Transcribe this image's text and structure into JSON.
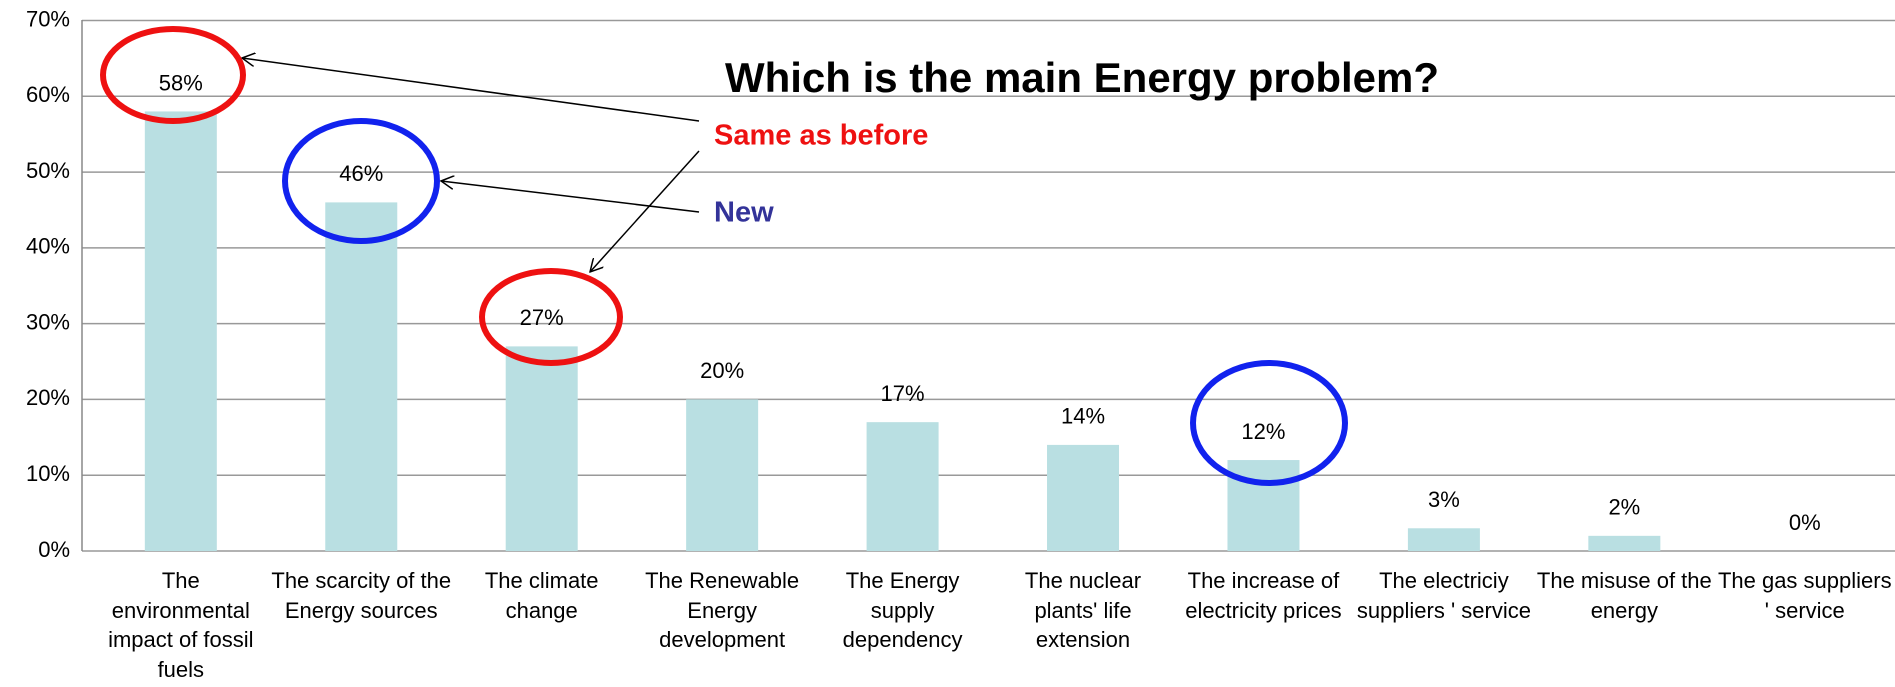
{
  "chart_data": {
    "type": "bar",
    "title": "Which is the main Energy problem?",
    "annotations": [
      "Same as before",
      "New"
    ],
    "categories": [
      "The environmental impact of fossil fuels",
      "The scarcity of the Energy sources",
      "The climate change",
      "The Renewable Energy development",
      "The Energy supply dependency",
      "The nuclear plants' life extension",
      "The increase of electricity prices",
      "The electriciy suppliers ' service",
      "The misuse of the energy",
      "The gas suppliers ' service"
    ],
    "values": [
      58,
      46,
      27,
      20,
      17,
      14,
      12,
      3,
      2,
      0
    ],
    "value_labels": [
      "58%",
      "46%",
      "27%",
      "20%",
      "17%",
      "14%",
      "12%",
      "3%",
      "2%",
      "0%"
    ],
    "color": "#b9dfe2",
    "ylim": [
      0,
      70
    ],
    "yticks": [
      {
        "value": 0,
        "label": "0%"
      },
      {
        "value": 10,
        "label": "10%"
      },
      {
        "value": 20,
        "label": "20%"
      },
      {
        "value": 30,
        "label": "30%"
      },
      {
        "value": 40,
        "label": "40%"
      },
      {
        "value": 50,
        "label": "50%"
      },
      {
        "value": 60,
        "label": "60%"
      },
      {
        "value": 70,
        "label": "70%"
      }
    ],
    "grid": true
  }
}
